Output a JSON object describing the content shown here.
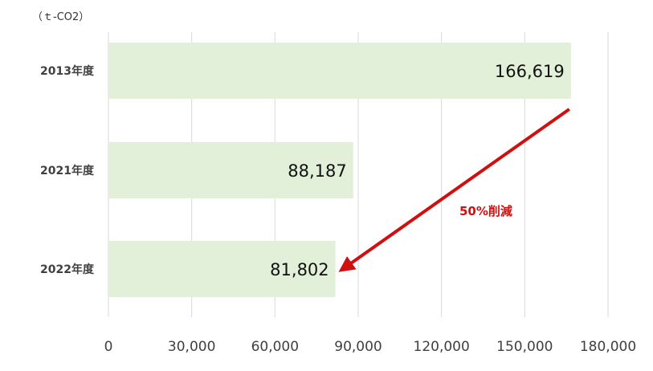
{
  "chart_data": {
    "type": "bar",
    "orientation": "horizontal",
    "unit_label": "（ｔ-CO2）",
    "categories": [
      "2013年度",
      "2021年度",
      "2022年度"
    ],
    "values": [
      166619,
      88187,
      81802
    ],
    "value_labels": [
      "166,619",
      "88,187",
      "81,802"
    ],
    "xlim": [
      0,
      180000
    ],
    "xticks": [
      0,
      30000,
      60000,
      90000,
      120000,
      150000,
      180000
    ],
    "xtick_labels": [
      "0",
      "30,000",
      "60,000",
      "90,000",
      "120,000",
      "150,000",
      "180,000"
    ],
    "grid": "vertical",
    "bar_color": "#e2efd9",
    "annotation": {
      "text": "50%削減",
      "color": "#d01010",
      "arrow_from": "2013年度",
      "arrow_to": "2022年度"
    }
  }
}
